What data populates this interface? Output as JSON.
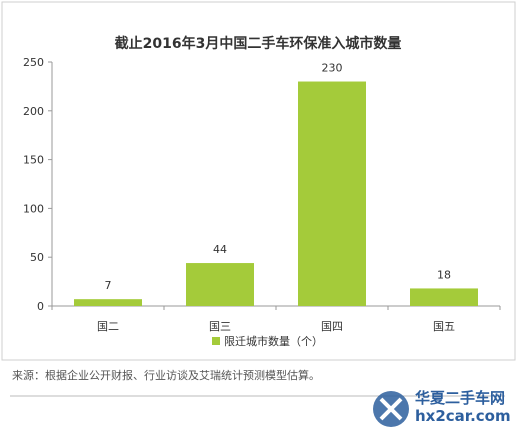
{
  "chart_data": {
    "type": "bar",
    "title": "截止2016年3月中国二手车环保准入城市数量",
    "categories": [
      "国二",
      "国三",
      "国四",
      "国五"
    ],
    "series": [
      {
        "name": "限迁城市数量（个）",
        "values": [
          7,
          44,
          230,
          18
        ]
      }
    ],
    "ylim": [
      0,
      250
    ],
    "yticks": [
      0,
      50,
      100,
      150,
      200,
      250
    ],
    "xlabel": "",
    "ylabel": "",
    "grid": false,
    "legend": "bottom",
    "bar_color": "#a4cb3a"
  },
  "source_note": "来源：根据企业公开财报、行业访谈及艾瑞统计预测模型估算。",
  "watermark": {
    "line1": "华夏二手车网",
    "line2": "hx2car.com",
    "logo_icon": "hx2car-logo-icon"
  }
}
